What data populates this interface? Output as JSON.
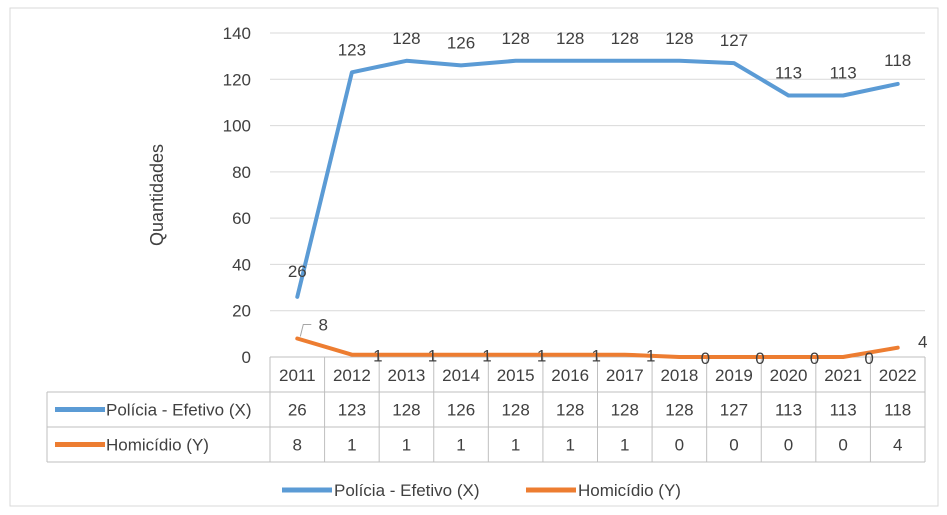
{
  "chart_data": {
    "type": "line",
    "ylabel": "Quantidades",
    "ylim": [
      0,
      140
    ],
    "yticks": [
      0,
      20,
      40,
      60,
      80,
      100,
      120,
      140
    ],
    "categories": [
      "2011",
      "2012",
      "2013",
      "2014",
      "2015",
      "2016",
      "2017",
      "2018",
      "2019",
      "2020",
      "2021",
      "2022"
    ],
    "series": [
      {
        "name": "Polícia - Efetivo (X)",
        "color": "#5b9bd5",
        "values": [
          26,
          123,
          128,
          126,
          128,
          128,
          128,
          128,
          127,
          113,
          113,
          118
        ]
      },
      {
        "name": "Homicídio (Y)",
        "color": "#ed7d31",
        "values": [
          8,
          1,
          1,
          1,
          1,
          1,
          1,
          0,
          0,
          0,
          0,
          4
        ]
      }
    ],
    "data_table": true,
    "legend": "bottom",
    "grid": "horizontal"
  }
}
